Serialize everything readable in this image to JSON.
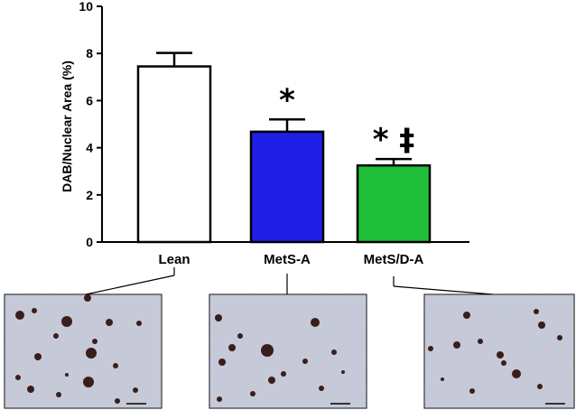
{
  "chart_data": {
    "type": "bar",
    "title": "",
    "xlabel": "",
    "ylabel": "DAB/Nuclear Area (%)",
    "ylim": [
      0,
      10
    ],
    "yticks": [
      0,
      2,
      4,
      6,
      8,
      10
    ],
    "grid": false,
    "legend": "none",
    "categories": [
      "Lean",
      "MetS-A",
      "MetS/D-A"
    ],
    "values": [
      7.45,
      4.68,
      3.25
    ],
    "errors": [
      0.57,
      0.52,
      0.27
    ],
    "colors": [
      "#ffffff",
      "#1e1ee6",
      "#1fbf3a"
    ],
    "annotations": [
      "",
      "*",
      "* ‡"
    ]
  },
  "micrographs": [
    {
      "label": "Lean"
    },
    {
      "label": "MetS-A"
    },
    {
      "label": "MetS/D-A"
    }
  ]
}
